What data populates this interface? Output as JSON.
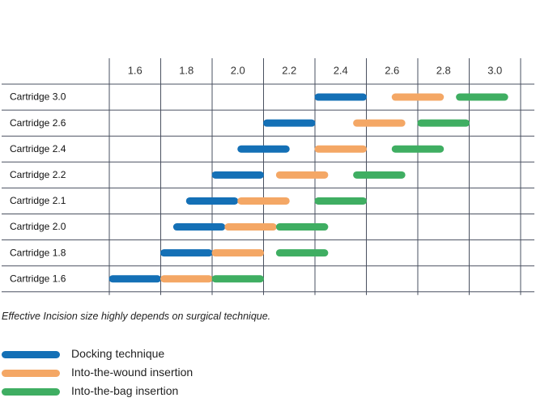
{
  "colors": {
    "docking": "#1470b6",
    "wound": "#f4a765",
    "bag": "#3fae62",
    "grid": "#4a5160"
  },
  "note": "Effective Incision size highly depends on surgical technique.",
  "legend": [
    {
      "key": "docking",
      "label": "Docking technique"
    },
    {
      "key": "wound",
      "label": "Into-the-wound insertion"
    },
    {
      "key": "bag",
      "label": "Into-the-bag insertion"
    }
  ],
  "chart_data": {
    "type": "bar",
    "orientation": "horizontal-range",
    "x_ticks": [
      "1.6",
      "1.8",
      "2.0",
      "2.2",
      "2.4",
      "2.6",
      "2.8",
      "3.0"
    ],
    "xlim": [
      1.5,
      3.1
    ],
    "categories": [
      "Cartridge 3.0",
      "Cartridge 2.6",
      "Cartridge 2.4",
      "Cartridge 2.2",
      "Cartridge 2.1",
      "Cartridge 2.0",
      "Cartridge 1.8",
      "Cartridge 1.6"
    ],
    "series": [
      {
        "key": "docking",
        "name": "Docking technique",
        "ranges": [
          [
            2.3,
            2.5
          ],
          [
            2.1,
            2.3
          ],
          [
            2.0,
            2.2
          ],
          [
            1.9,
            2.1
          ],
          [
            1.8,
            2.0
          ],
          [
            1.75,
            1.95
          ],
          [
            1.7,
            1.9
          ],
          [
            1.5,
            1.7
          ]
        ]
      },
      {
        "key": "wound",
        "name": "Into-the-wound insertion",
        "ranges": [
          [
            2.6,
            2.8
          ],
          [
            2.45,
            2.65
          ],
          [
            2.3,
            2.5
          ],
          [
            2.15,
            2.35
          ],
          [
            2.0,
            2.2
          ],
          [
            1.95,
            2.15
          ],
          [
            1.9,
            2.1
          ],
          [
            1.7,
            1.9
          ]
        ]
      },
      {
        "key": "bag",
        "name": "Into-the-bag insertion",
        "ranges": [
          [
            2.85,
            3.05
          ],
          [
            2.7,
            2.9
          ],
          [
            2.6,
            2.8
          ],
          [
            2.45,
            2.65
          ],
          [
            2.3,
            2.5
          ],
          [
            2.15,
            2.35
          ],
          [
            2.15,
            2.35
          ],
          [
            1.9,
            2.1
          ]
        ]
      }
    ]
  }
}
